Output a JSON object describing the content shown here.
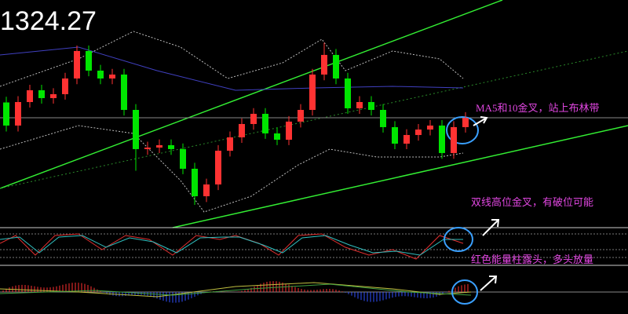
{
  "chart_data": {
    "type": "candlestick",
    "title": "1324.27",
    "open": [
      1327.0,
      1322.94,
      1327.07,
      1329.14,
      1327.76,
      1328.45,
      1331.21,
      1336.04,
      1332.59,
      1331.21,
      1331.9,
      1325.69,
      1318.8,
      1319.07,
      1319.49,
      1318.8,
      1315.35,
      1310.52,
      1312.59,
      1318.52,
      1320.87,
      1323.21,
      1325.0,
      1321.56,
      1320.45,
      1323.63,
      1325.69,
      1331.9,
      1335.35,
      1331.21,
      1325.97,
      1327.07,
      1325.69,
      1322.66,
      1319.76,
      1321.28,
      1322.24,
      1322.94,
      1318.11,
      1322.66
    ],
    "high": [
      1328.0,
      1328.1,
      1330.1,
      1330.1,
      1329.5,
      1332.2,
      1337.0,
      1337.0,
      1333.6,
      1332.9,
      1332.9,
      1326.7,
      1320.1,
      1320.5,
      1320.5,
      1319.8,
      1316.4,
      1313.6,
      1319.5,
      1321.9,
      1324.2,
      1326.0,
      1326.0,
      1322.6,
      1324.6,
      1326.7,
      1332.9,
      1337.5,
      1336.4,
      1332.2,
      1328.1,
      1328.1,
      1326.7,
      1323.7,
      1322.3,
      1323.2,
      1323.9,
      1323.9,
      1323.7,
      1325.3
    ],
    "low": [
      1321.9,
      1321.9,
      1326.1,
      1326.8,
      1326.8,
      1327.5,
      1330.2,
      1331.6,
      1330.2,
      1330.2,
      1324.7,
      1315.0,
      1317.8,
      1318.1,
      1317.8,
      1314.4,
      1309.0,
      1309.5,
      1311.6,
      1317.5,
      1319.9,
      1322.2,
      1320.6,
      1319.5,
      1319.5,
      1322.6,
      1324.7,
      1330.9,
      1330.2,
      1325.0,
      1325.0,
      1324.7,
      1321.7,
      1318.8,
      1318.8,
      1320.3,
      1321.2,
      1317.1,
      1317.1,
      1321.7
    ],
    "close": [
      1322.94,
      1327.07,
      1329.14,
      1327.76,
      1328.45,
      1331.21,
      1336.04,
      1332.59,
      1331.21,
      1331.9,
      1325.69,
      1318.8,
      1319.07,
      1319.49,
      1318.8,
      1315.35,
      1310.52,
      1312.59,
      1318.52,
      1320.87,
      1323.21,
      1325.0,
      1321.56,
      1320.45,
      1323.63,
      1325.69,
      1331.9,
      1335.35,
      1331.21,
      1325.97,
      1327.07,
      1325.69,
      1322.66,
      1319.76,
      1321.28,
      1322.24,
      1322.94,
      1318.11,
      1322.66,
      1324.27
    ],
    "ylim": [
      1305,
      1345
    ],
    "up_color": "#ff3232",
    "down_color": "#00e600",
    "annotations": [
      "MA5和10金叉，站上布林带",
      "双线高位金叉，有破位可能",
      "红色能量柱露头，多头放量"
    ]
  }
}
